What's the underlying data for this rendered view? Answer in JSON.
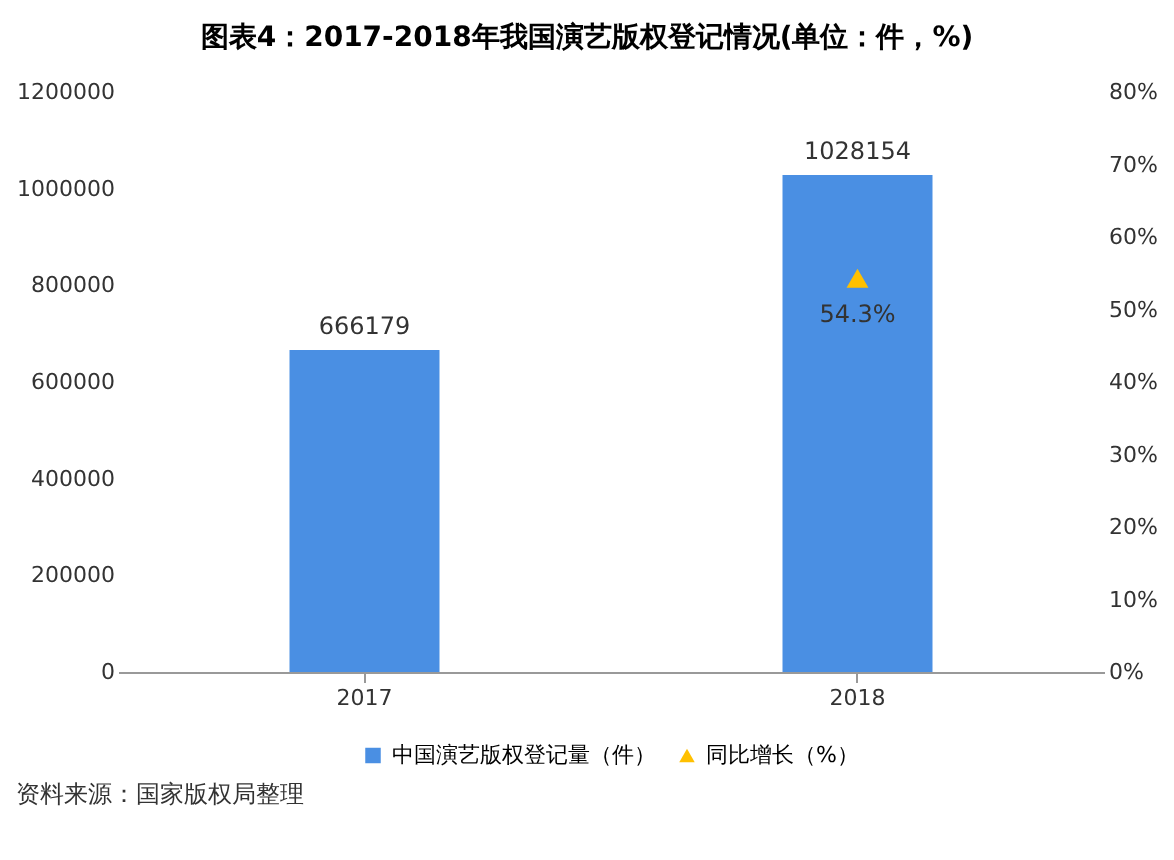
{
  "chart_data": {
    "type": "bar",
    "title": "图表4：2017-2018年我国演艺版权登记情况(单位：件，%)",
    "categories": [
      "2017",
      "2018"
    ],
    "series": [
      {
        "name": "中国演艺版权登记量（件）",
        "type": "bar",
        "color": "#4a8fe3",
        "values": [
          666179,
          1028154
        ],
        "value_labels": [
          "666179",
          "1028154"
        ]
      },
      {
        "name": "同比增长（%）",
        "type": "scatter",
        "axis": "y2",
        "marker": "triangle",
        "color": "#ffc000",
        "values": [
          null,
          54.3
        ],
        "value_labels": [
          null,
          "54.3%"
        ]
      }
    ],
    "ylim": [
      0,
      1200000
    ],
    "yticks": [
      0,
      200000,
      400000,
      600000,
      800000,
      1000000,
      1200000
    ],
    "y2lim": [
      0,
      80
    ],
    "y2ticks": [
      {
        "value": 0,
        "label": "0%"
      },
      {
        "value": 10,
        "label": "10%"
      },
      {
        "value": 20,
        "label": "20%"
      },
      {
        "value": 30,
        "label": "30%"
      },
      {
        "value": 40,
        "label": "40%"
      },
      {
        "value": 50,
        "label": "50%"
      },
      {
        "value": 60,
        "label": "60%"
      },
      {
        "value": 70,
        "label": "70%"
      },
      {
        "value": 80,
        "label": "80%"
      }
    ],
    "legend": "bottom",
    "annotations": [
      "资料来源：国家版权局整理"
    ]
  }
}
